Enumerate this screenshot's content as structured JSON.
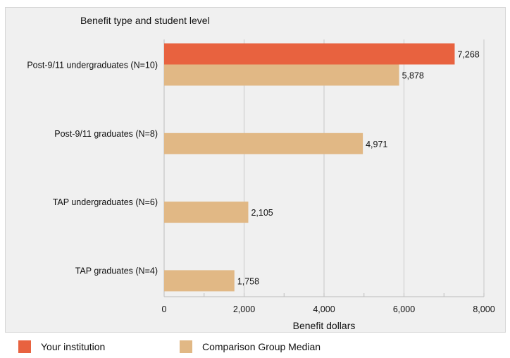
{
  "chart_data": {
    "type": "bar",
    "orientation": "horizontal",
    "title": "Benefit type and student level",
    "xlabel": "Benefit dollars",
    "xlim": [
      0,
      8000
    ],
    "xticks": [
      "0",
      "2,000",
      "4,000",
      "6,000",
      "8,000"
    ],
    "grid": true,
    "categories": [
      "Post-9/11 undergraduates (N=10)",
      "Post-9/11 graduates (N=8)",
      "TAP undergraduates (N=6)",
      "TAP graduates (N=4)"
    ],
    "series": [
      {
        "name": "Your institution",
        "color": "#e8623f",
        "values": [
          7268,
          null,
          null,
          null
        ],
        "labels": [
          "7,268",
          "",
          "",
          ""
        ]
      },
      {
        "name": "Comparison Group Median",
        "color": "#e1b885",
        "values": [
          5878,
          4971,
          2105,
          1758
        ],
        "labels": [
          "5,878",
          "4,971",
          "2,105",
          "1,758"
        ]
      }
    ],
    "legend_position": "bottom"
  }
}
